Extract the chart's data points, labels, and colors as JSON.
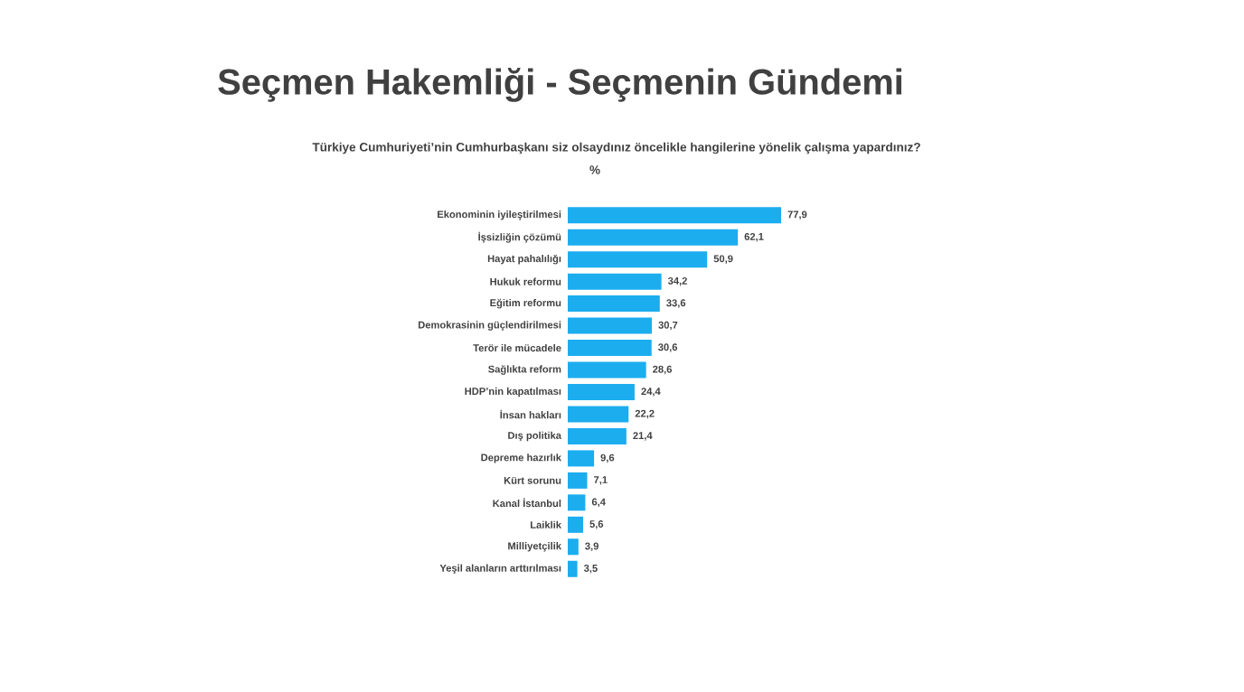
{
  "chart_data": {
    "type": "bar",
    "orientation": "horizontal",
    "title": "Seçmen Hakemliği - Seçmenin Gündemi",
    "subtitle": "Türkiye Cumhuriyeti’nin Cumhurbaşkanı siz olsaydınız öncelikle hangilerine yönelik çalışma yapardınız?",
    "annotations": [
      "%"
    ],
    "categories": [
      "Ekonominin iyileştirilmesi",
      "İşsizliğin çözümü",
      "Hayat pahalılığı",
      "Hukuk reformu",
      "Eğitim reformu",
      "Demokrasinin güçlendirilmesi",
      "Terör ile mücadele",
      "Sağlıkta reform",
      "HDP’nin kapatılması",
      "İnsan hakları",
      "Dış politika",
      "Depreme hazırlık",
      "Kürt sorunu",
      "Kanal İstanbul",
      "Laiklik",
      "Milliyetçilik",
      "Yeşil alanların arttırılması"
    ],
    "values": [
      77.9,
      62.1,
      50.9,
      34.2,
      33.6,
      30.7,
      30.6,
      28.6,
      24.4,
      22.2,
      21.4,
      9.6,
      7.1,
      6.4,
      5.6,
      3.9,
      3.5
    ],
    "value_labels": [
      "77,9",
      "62,1",
      "50,9",
      "34,2",
      "33,6",
      "30,7",
      "30,6",
      "28,6",
      "24,4",
      "22,2",
      "21,4",
      "9,6",
      "7,1",
      "6,4",
      "5,6",
      "3,9",
      "3,5"
    ],
    "color": "#1cadef"
  }
}
